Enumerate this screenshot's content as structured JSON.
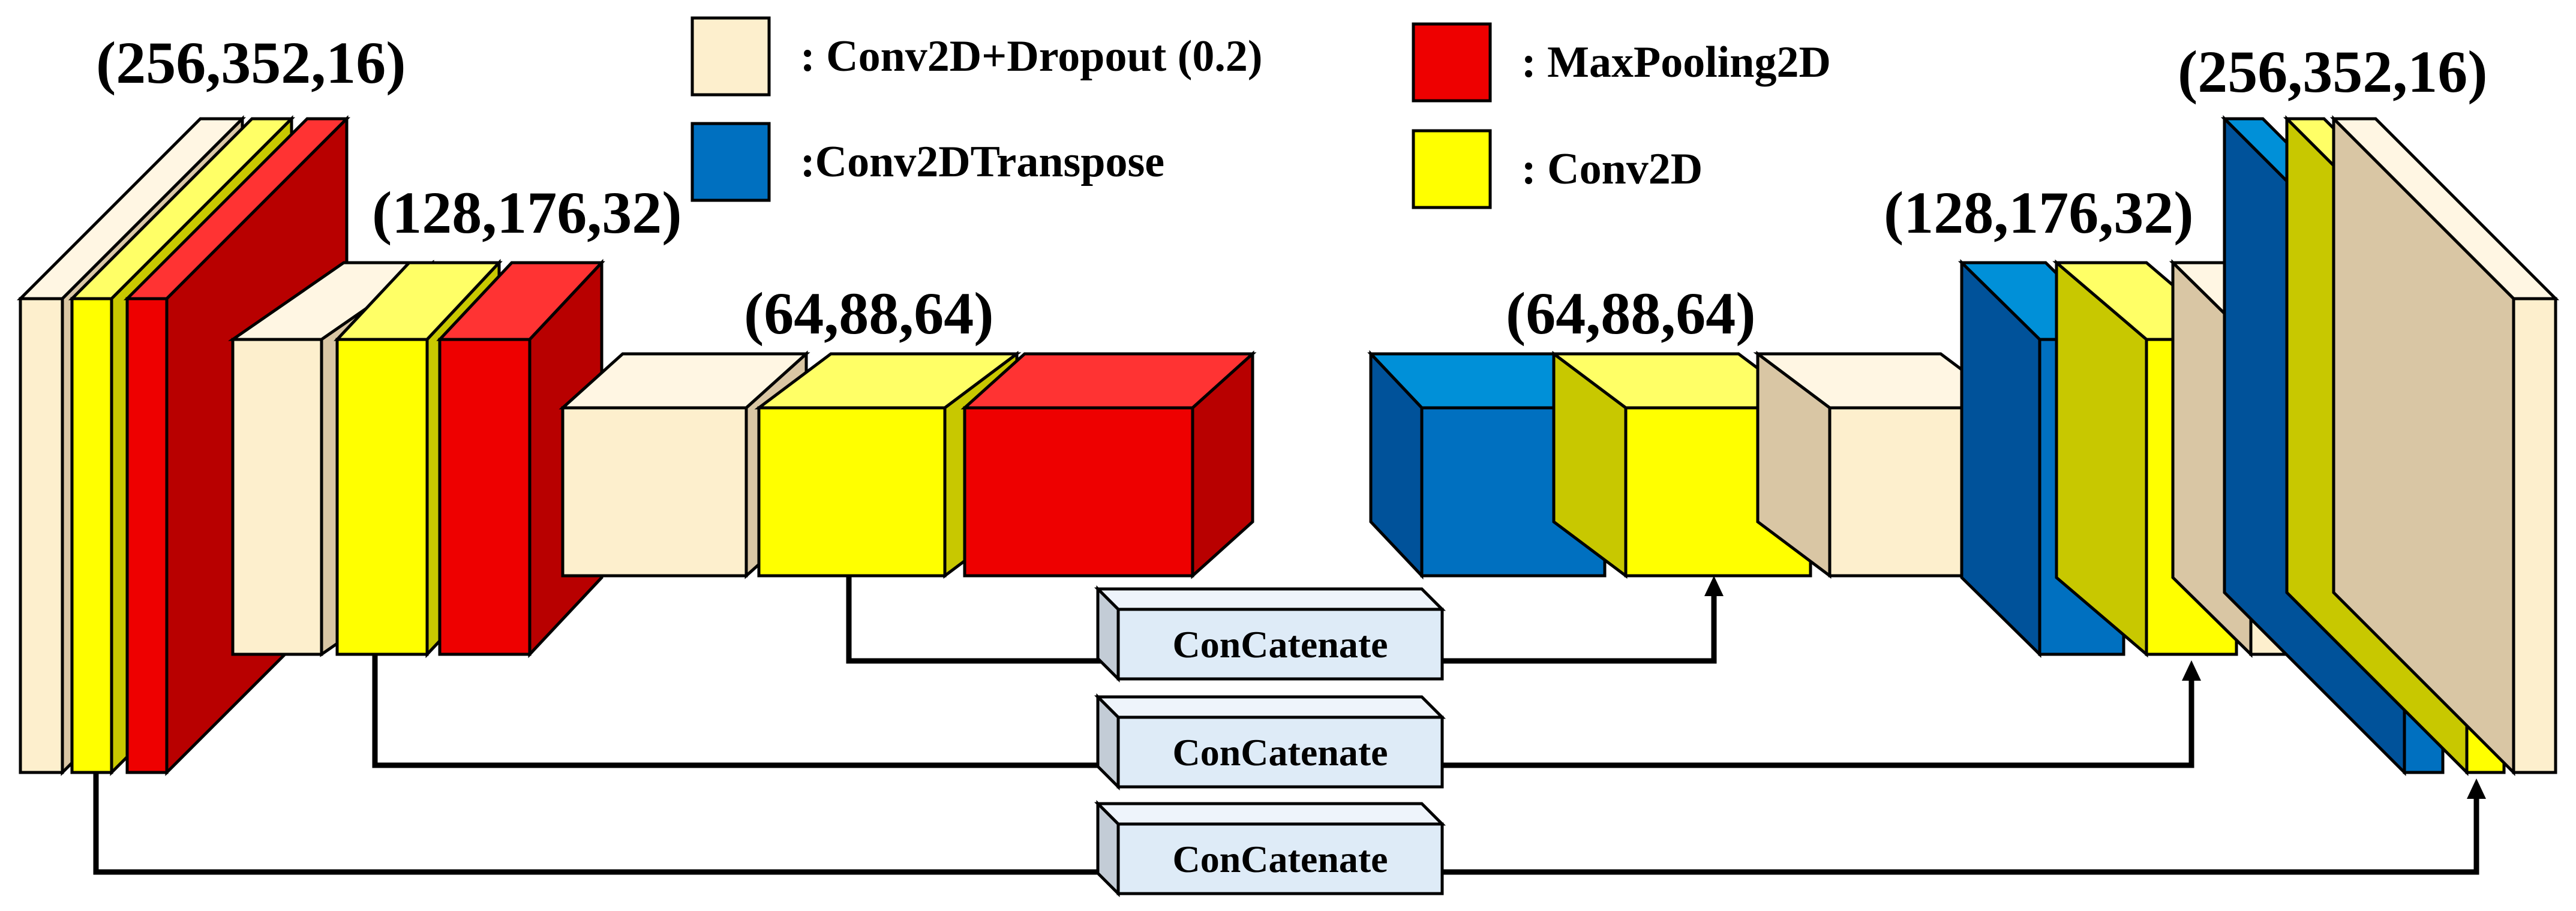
{
  "colors": {
    "conv_dropout": {
      "front": "#fdefcd",
      "side": "#d9c6a4",
      "top": "#fff6e3"
    },
    "conv": {
      "front": "#ffff00",
      "side": "#c8c800",
      "top": "#ffff66"
    },
    "maxpool": {
      "front": "#ee0000",
      "side": "#b80000",
      "top": "#ff3333"
    },
    "transpose": {
      "front": "#0070c0",
      "side": "#00529a",
      "top": "#0090d8"
    },
    "concat": {
      "front": "#deebf7",
      "side": "#c3ccd6",
      "top": "#eef4fb"
    }
  },
  "legend": {
    "conv_dropout": {
      "label": ": Conv2D+Dropout (0.2)",
      "icon": "cream-square"
    },
    "maxpool": {
      "label": ": MaxPooling2D",
      "icon": "red-square"
    },
    "transpose": {
      "label": ":Conv2DTranspose",
      "icon": "blue-square"
    },
    "conv": {
      "label": ": Conv2D",
      "icon": "yellow-square"
    }
  },
  "shapes": {
    "enc1": "(256,352,16)",
    "enc2": "(128,176,32)",
    "enc3": "(64,88,64)",
    "dec3": "(64,88,64)",
    "dec2": "(128,176,32)",
    "dec1": "(256,352,16)"
  },
  "encoder": [
    {
      "stage": 1,
      "layers": [
        "conv_dropout",
        "conv",
        "maxpool"
      ]
    },
    {
      "stage": 2,
      "layers": [
        "conv_dropout",
        "conv",
        "maxpool"
      ]
    },
    {
      "stage": 3,
      "layers": [
        "conv_dropout",
        "conv",
        "maxpool"
      ]
    }
  ],
  "decoder": [
    {
      "stage": 3,
      "layers": [
        "transpose",
        "conv",
        "conv_dropout"
      ]
    },
    {
      "stage": 2,
      "layers": [
        "transpose",
        "conv",
        "conv_dropout"
      ]
    },
    {
      "stage": 1,
      "layers": [
        "transpose",
        "conv",
        "conv_dropout"
      ]
    }
  ],
  "concat": [
    {
      "label": "ConCatenate",
      "from": "encoder stage 3 Conv2D",
      "to": "decoder stage 3 Conv2D"
    },
    {
      "label": "ConCatenate",
      "from": "encoder stage 2 Conv2D",
      "to": "decoder stage 2 Conv2D"
    },
    {
      "label": "ConCatenate",
      "from": "encoder stage 1 Conv2D",
      "to": "decoder stage 1 Conv2D"
    }
  ]
}
